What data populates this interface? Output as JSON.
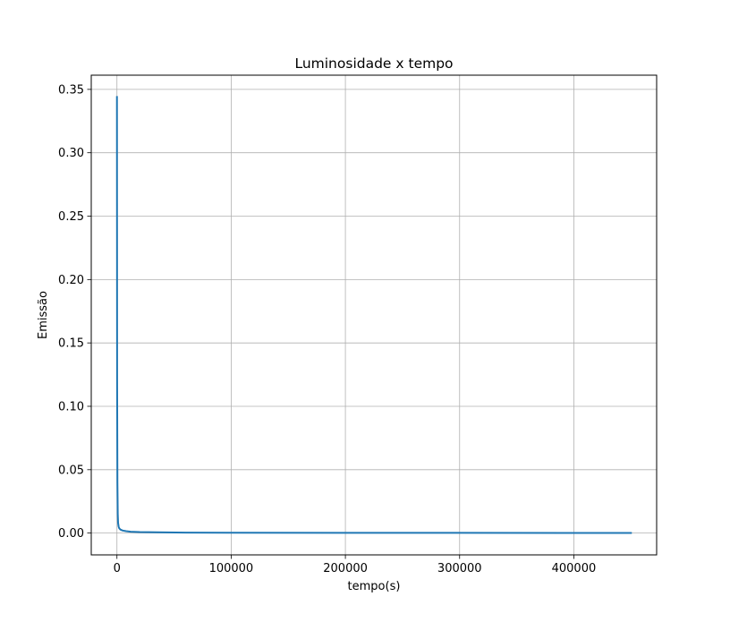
{
  "chart_data": {
    "type": "line",
    "title": "Luminosidade x tempo",
    "xlabel": "tempo(s)",
    "ylabel": "Emissão",
    "xlim": [
      -22500,
      472500
    ],
    "ylim": [
      -0.0172,
      0.3612
    ],
    "grid": true,
    "xticks": [
      0,
      100000,
      200000,
      300000,
      400000
    ],
    "xtick_labels": [
      "0",
      "100000",
      "200000",
      "300000",
      "400000"
    ],
    "yticks": [
      0.0,
      0.05,
      0.1,
      0.15,
      0.2,
      0.25,
      0.3,
      0.35
    ],
    "ytick_labels": [
      "0.00",
      "0.05",
      "0.10",
      "0.15",
      "0.20",
      "0.25",
      "0.30",
      "0.35"
    ],
    "series": [
      {
        "color": "#1f77b4",
        "x": [
          0,
          150,
          400,
          700,
          1000,
          1500,
          2000,
          3000,
          5000,
          8000,
          12000,
          20000,
          35000,
          60000,
          100000,
          200000,
          300000,
          450000
        ],
        "y": [
          0.344,
          0.12,
          0.04,
          0.015,
          0.008,
          0.005,
          0.0038,
          0.0028,
          0.002,
          0.0015,
          0.0011,
          0.0008,
          0.0006,
          0.0004,
          0.0003,
          0.0002,
          0.00015,
          0.0001
        ]
      }
    ]
  }
}
